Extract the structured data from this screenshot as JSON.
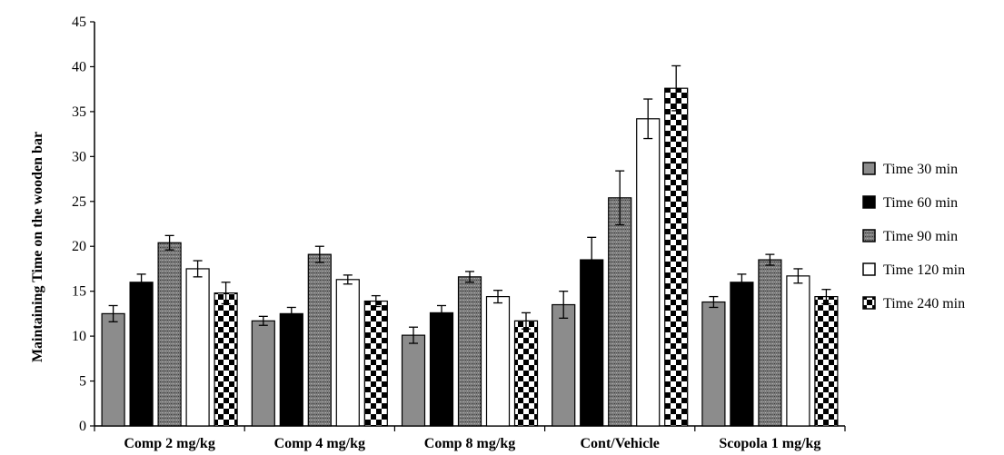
{
  "chart_data": {
    "type": "bar",
    "ylabel": "Maintaining Time on the wooden bar",
    "xlabel": "",
    "ylim": [
      0,
      45
    ],
    "yticks": [
      0,
      5,
      10,
      15,
      20,
      25,
      30,
      35,
      40,
      45
    ],
    "grid": false,
    "legend_position": "right",
    "categories": [
      "Comp 2 mg/kg",
      "Comp 4 mg/kg",
      "Comp 8 mg/kg",
      "Cont/Vehicle",
      "Scopola 1 mg/kg"
    ],
    "series": [
      {
        "name": "Time 30 min",
        "pattern": "solid-gray",
        "color": "#8c8c8c",
        "values": [
          12.5,
          11.7,
          10.1,
          13.5,
          13.8
        ],
        "errors": [
          0.9,
          0.5,
          0.9,
          1.5,
          0.6
        ]
      },
      {
        "name": "Time 60 min",
        "pattern": "solid-black",
        "color": "#000000",
        "values": [
          16.0,
          12.5,
          12.6,
          18.5,
          16.0
        ],
        "errors": [
          0.9,
          0.7,
          0.8,
          2.5,
          0.9
        ]
      },
      {
        "name": "Time 90 min",
        "pattern": "gray-texture",
        "color": "#6f6f6f",
        "values": [
          20.4,
          19.1,
          16.6,
          25.4,
          18.5
        ],
        "errors": [
          0.8,
          0.9,
          0.6,
          3.0,
          0.6
        ]
      },
      {
        "name": "Time 120 min",
        "pattern": "white",
        "color": "#ffffff",
        "values": [
          17.5,
          16.3,
          14.4,
          34.2,
          16.7
        ],
        "errors": [
          0.9,
          0.5,
          0.7,
          2.2,
          0.8
        ]
      },
      {
        "name": "Time 240 min",
        "pattern": "checkerboard",
        "color": "#000000",
        "values": [
          14.8,
          13.9,
          11.7,
          37.6,
          14.4
        ],
        "errors": [
          1.2,
          0.6,
          0.9,
          2.5,
          0.8
        ]
      }
    ]
  }
}
